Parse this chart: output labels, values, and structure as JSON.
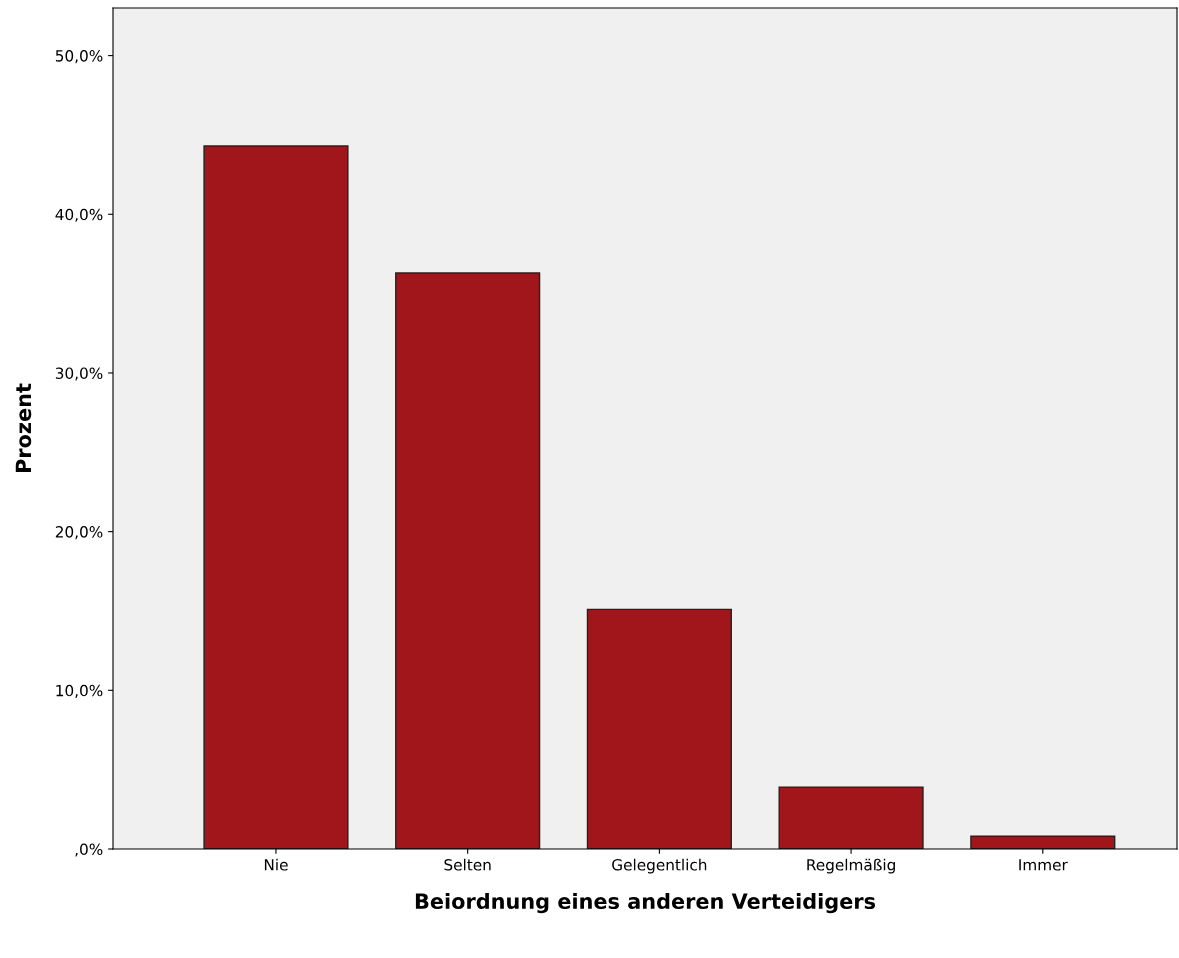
{
  "chart_data": {
    "type": "bar",
    "xlabel": "Beiordnung eines anderen Verteidigers",
    "ylabel": "Prozent",
    "categories": [
      "Nie",
      "Selten",
      "Gelegentlich",
      "Regelmäßig",
      "Immer"
    ],
    "values": [
      44.3,
      36.3,
      15.1,
      3.9,
      0.8
    ],
    "color": "#a0161a",
    "ylim": [
      0,
      53
    ],
    "yticks": [
      {
        "value": 0,
        "label": ",0%"
      },
      {
        "value": 10,
        "label": "10,0%"
      },
      {
        "value": 20,
        "label": "20,0%"
      },
      {
        "value": 30,
        "label": "30,0%"
      },
      {
        "value": 40,
        "label": "40,0%"
      },
      {
        "value": 50,
        "label": "50,0%"
      }
    ],
    "grid": false
  }
}
